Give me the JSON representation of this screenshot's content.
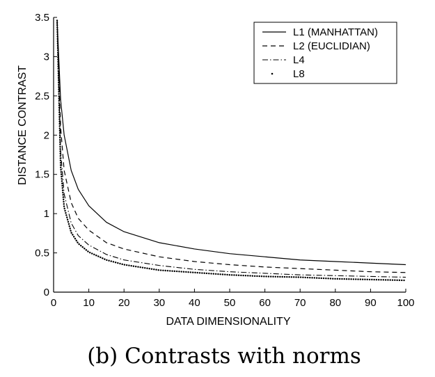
{
  "chart_data": {
    "type": "line",
    "title": "",
    "caption": "(b) Contrasts with norms",
    "xlabel": "DATA DIMENSIONALITY",
    "ylabel": "DISTANCE CONTRAST",
    "xlim": [
      0,
      100
    ],
    "ylim": [
      0,
      3.5
    ],
    "xticks": [
      0,
      10,
      20,
      30,
      40,
      50,
      60,
      70,
      80,
      90,
      100
    ],
    "yticks": [
      0,
      0.5,
      1,
      1.5,
      2,
      2.5,
      3,
      3.5
    ],
    "xtick_labels": [
      "0",
      "10",
      "20",
      "30",
      "40",
      "50",
      "60",
      "70",
      "80",
      "90",
      "100"
    ],
    "ytick_labels": [
      "0",
      "0.5",
      "1",
      "1.5",
      "2",
      "2.5",
      "3",
      "3.5"
    ],
    "grid": false,
    "legend_position": "top-right",
    "x": [
      1,
      2,
      3,
      5,
      7,
      10,
      15,
      20,
      30,
      40,
      50,
      60,
      70,
      80,
      90,
      100
    ],
    "series": [
      {
        "name": "L1 (MANHATTAN)",
        "style": "solid",
        "values": [
          3.46,
          2.45,
          2.0,
          1.55,
          1.31,
          1.1,
          0.89,
          0.77,
          0.63,
          0.55,
          0.49,
          0.45,
          0.41,
          0.39,
          0.37,
          0.35
        ]
      },
      {
        "name": "L2 (EUCLIDIAN)",
        "style": "dashed",
        "values": [
          3.46,
          2.1,
          1.55,
          1.14,
          0.94,
          0.79,
          0.63,
          0.55,
          0.45,
          0.39,
          0.35,
          0.32,
          0.3,
          0.28,
          0.26,
          0.25
        ]
      },
      {
        "name": "L4",
        "style": "dashdot",
        "values": [
          3.46,
          1.8,
          1.25,
          0.88,
          0.72,
          0.6,
          0.48,
          0.41,
          0.34,
          0.29,
          0.26,
          0.24,
          0.22,
          0.21,
          0.2,
          0.19
        ]
      },
      {
        "name": "L8",
        "style": "dotted",
        "values": [
          3.46,
          1.6,
          1.08,
          0.76,
          0.62,
          0.51,
          0.41,
          0.35,
          0.28,
          0.25,
          0.22,
          0.2,
          0.19,
          0.17,
          0.16,
          0.15
        ]
      }
    ]
  }
}
